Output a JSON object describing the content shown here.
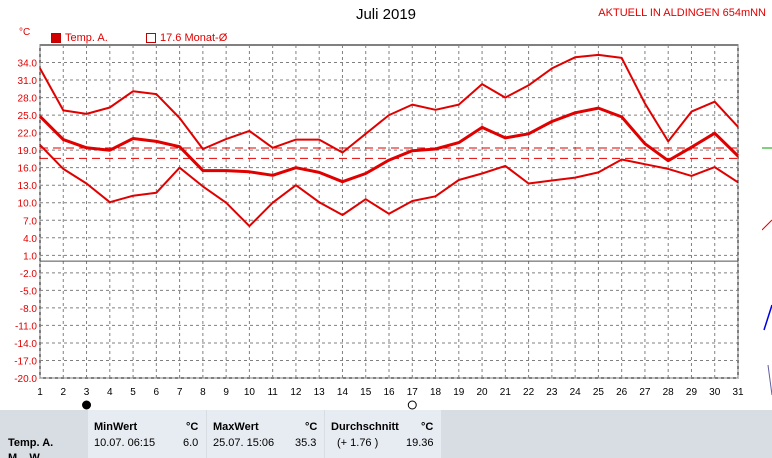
{
  "title": "Juli 2019",
  "station": "AKTUELL IN ALDINGEN 654mNN",
  "unit": "°C",
  "legend": {
    "series_label": "Temp. A.",
    "monthly_avg_label": "17.6 Monat-Ø"
  },
  "colors": {
    "series": "#e00000",
    "grid": "#808080",
    "zero_line": "#505050"
  },
  "chart_data": {
    "type": "line",
    "title": "Juli 2019",
    "xlabel": "",
    "ylabel": "°C",
    "x": [
      1,
      2,
      3,
      4,
      5,
      6,
      7,
      8,
      9,
      10,
      11,
      12,
      13,
      14,
      15,
      16,
      17,
      18,
      19,
      20,
      21,
      22,
      23,
      24,
      25,
      26,
      27,
      28,
      29,
      30,
      31
    ],
    "y_ticks": [
      "34.0",
      "31.0",
      "28.0",
      "25.0",
      "22.0",
      "19.0",
      "16.0",
      "13.0",
      "10.0",
      "7.0",
      "4.0",
      "1.0",
      "-2.0",
      "-5.0",
      "-8.0",
      "-11.0",
      "-14.0",
      "-17.0",
      "-20.0"
    ],
    "x_ticks": [
      "1",
      "2",
      "3",
      "4",
      "5",
      "6",
      "7",
      "8",
      "9",
      "10",
      "11",
      "12",
      "13",
      "14",
      "15",
      "16",
      "17",
      "18",
      "19",
      "20",
      "21",
      "22",
      "23",
      "24",
      "25",
      "26",
      "27",
      "28",
      "29",
      "30",
      "31"
    ],
    "ylim": [
      -20,
      37
    ],
    "grid": true,
    "series": [
      {
        "role": "max",
        "values": [
          33.0,
          25.8,
          25.2,
          26.3,
          29.1,
          28.6,
          24.5,
          19.2,
          20.9,
          22.3,
          19.4,
          20.8,
          20.8,
          18.6,
          21.8,
          25.0,
          26.8,
          25.9,
          26.8,
          30.3,
          28.0,
          30.1,
          33.0,
          34.9,
          35.3,
          34.8,
          27.0,
          20.5,
          25.6,
          27.3,
          23.0
        ]
      },
      {
        "role": "avg",
        "values": [
          24.8,
          20.8,
          19.4,
          19.0,
          21.0,
          20.5,
          19.6,
          15.5,
          15.5,
          15.3,
          14.7,
          16.0,
          15.2,
          13.6,
          15.0,
          17.3,
          18.9,
          19.2,
          20.3,
          22.9,
          21.1,
          21.8,
          23.9,
          25.4,
          26.2,
          24.7,
          20.1,
          17.2,
          19.5,
          21.9,
          18.0
        ]
      },
      {
        "role": "min",
        "values": [
          19.9,
          15.8,
          13.3,
          10.1,
          11.2,
          11.7,
          16.0,
          12.8,
          10.0,
          6.0,
          10.0,
          13.0,
          10.1,
          7.9,
          10.6,
          8.1,
          10.3,
          11.1,
          13.9,
          15.0,
          16.3,
          13.3,
          13.8,
          14.3,
          15.2,
          17.4,
          16.6,
          15.8,
          14.6,
          16.1,
          13.5
        ]
      }
    ],
    "reference_lines": [
      {
        "role": "monthly_avg",
        "value": 17.6
      },
      {
        "role": "upper",
        "value": 19.36
      }
    ]
  },
  "footer": {
    "row_label": "Temp. A.",
    "row_label_2": "M... W...",
    "min": {
      "header": "MinWert",
      "unit": "°C",
      "date": "10.07.  06:15",
      "value": "6.0"
    },
    "max": {
      "header": "MaxWert",
      "unit": "°C",
      "date": "25.07.  15:06",
      "value": "35.3"
    },
    "avg": {
      "header": "Durchschnitt",
      "unit": "°C",
      "delta": "(+ 1.76 )",
      "value": "19.36"
    }
  }
}
